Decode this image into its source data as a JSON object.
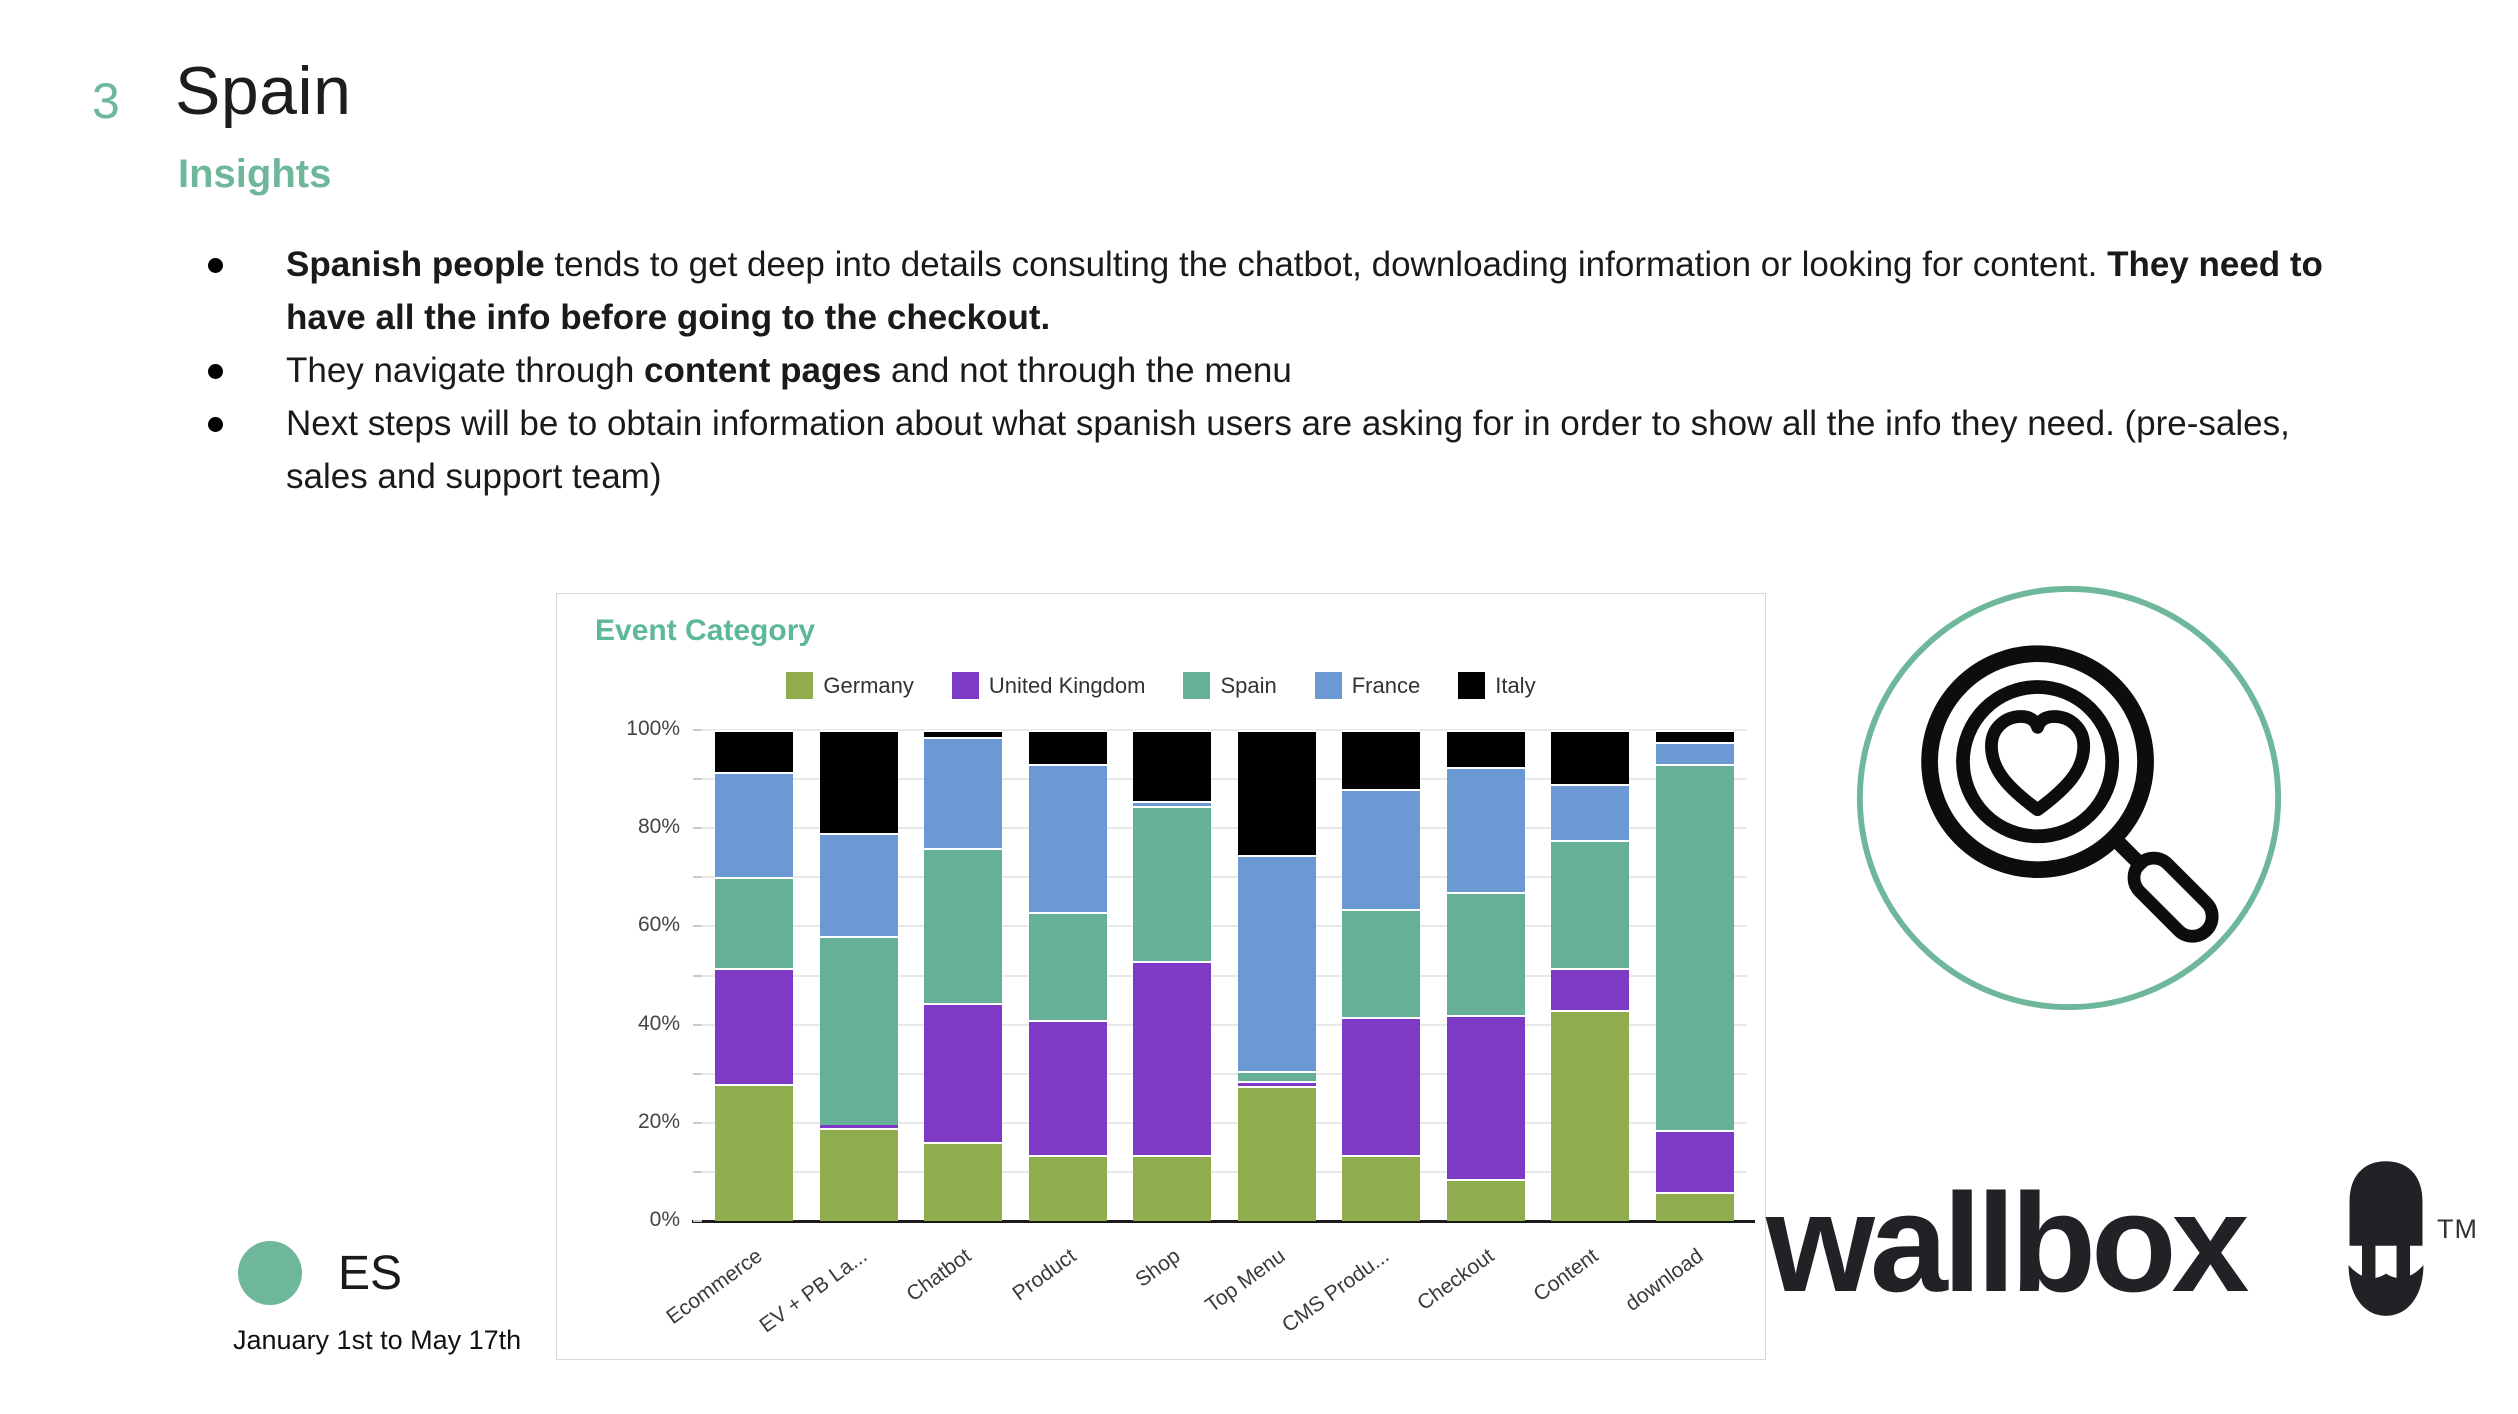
{
  "slide": {
    "number": "3",
    "title": "Spain",
    "subtitle": "Insights",
    "accent_color": "#6FB79A",
    "bullets": [
      {
        "runs": [
          {
            "t": "Spanish people",
            "b": true
          },
          {
            "t": " tends to get deep into details consulting the chatbot, downloading information or looking for content. ",
            "b": false
          },
          {
            "t": "They need to have all the info before going to the checkout.",
            "b": true
          }
        ]
      },
      {
        "runs": [
          {
            "t": "They navigate through ",
            "b": false
          },
          {
            "t": "content pages",
            "b": true
          },
          {
            "t": " and not through the menu",
            "b": false
          }
        ]
      },
      {
        "runs": [
          {
            "t": "Next steps will be to obtain information about what spanish users are asking for in order to show all the info they need. (pre-sales, sales and support team)",
            "b": false
          }
        ]
      }
    ]
  },
  "chart_data": {
    "type": "bar",
    "stacked": true,
    "percent": true,
    "title": "Event Category",
    "title_color": "#5CB79C",
    "legend_position": "top",
    "grid": true,
    "ylim": [
      0,
      100
    ],
    "y_tick_labels": [
      "0%",
      "20%",
      "40%",
      "60%",
      "80%",
      "100%"
    ],
    "minor_tick_step": 10,
    "categories": [
      "Ecommerce",
      "EV + PB La...",
      "Chatbot",
      "Product",
      "Shop",
      "Top Menu",
      "CMS Produ...",
      "Checkout",
      "Content",
      "download"
    ],
    "series": [
      {
        "name": "Germany",
        "color": "#8FAC4E",
        "values": [
          28,
          19,
          16,
          13.5,
          13.5,
          27.5,
          13.5,
          8.5,
          43,
          6
        ]
      },
      {
        "name": "United Kingdom",
        "color": "#7C3AC5",
        "values": [
          23.5,
          0.5,
          28.5,
          27.5,
          39.5,
          1,
          28,
          33.5,
          8.5,
          12.5
        ]
      },
      {
        "name": "Spain",
        "color": "#67B098",
        "values": [
          18.5,
          38.5,
          31.5,
          22,
          31.5,
          2,
          22,
          25,
          26,
          74.5
        ]
      },
      {
        "name": "France",
        "color": "#6A99D4",
        "values": [
          21.5,
          21,
          22.5,
          30,
          1,
          44,
          24.5,
          25.5,
          11.5,
          4.5
        ]
      },
      {
        "name": "Italy",
        "color": "#000000",
        "values": [
          8.5,
          21,
          1.5,
          7,
          14.5,
          25.5,
          12,
          7.5,
          11,
          2.5
        ]
      }
    ]
  },
  "footer": {
    "badge_text": "ES",
    "badge_color": "#6FB79A",
    "date_range": "January 1st to May 17th"
  },
  "brand": {
    "logo_text": "wallbox",
    "tm": "TM"
  }
}
